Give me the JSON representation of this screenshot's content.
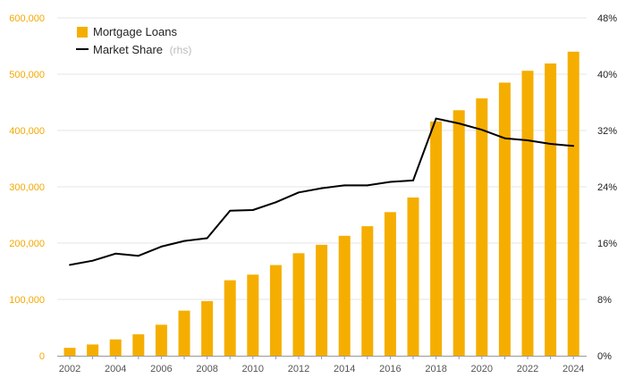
{
  "chart_data": {
    "type": "bar",
    "title": "",
    "x": [
      2002,
      2003,
      2004,
      2005,
      2006,
      2007,
      2008,
      2009,
      2010,
      2011,
      2012,
      2013,
      2014,
      2015,
      2016,
      2017,
      2018,
      2019,
      2020,
      2021,
      2022,
      2023,
      2024
    ],
    "x_tick_labels": [
      "2002",
      "2004",
      "2006",
      "2008",
      "2010",
      "2012",
      "2014",
      "2016",
      "2018",
      "2020",
      "2022",
      "2024"
    ],
    "series": [
      {
        "name": "Mortgage Loans",
        "type": "bar",
        "axis": "left",
        "color": "#f5ae00",
        "values": [
          14000,
          20000,
          29000,
          38000,
          55000,
          80000,
          97000,
          134000,
          144000,
          161000,
          182000,
          197000,
          213000,
          230000,
          255000,
          281000,
          416000,
          436000,
          457000,
          485000,
          506000,
          519000,
          540000
        ]
      },
      {
        "name": "Market Share",
        "suffix": "(rhs)",
        "type": "line",
        "axis": "right",
        "color": "#000000",
        "values": [
          12.9,
          13.5,
          14.5,
          14.2,
          15.5,
          16.3,
          16.7,
          20.6,
          20.7,
          21.8,
          23.2,
          23.8,
          24.2,
          24.2,
          24.7,
          24.9,
          33.7,
          33.0,
          32.1,
          30.9,
          30.6,
          30.1,
          29.8
        ]
      }
    ],
    "y_left": {
      "min": 0,
      "max": 600000,
      "ticks": [
        0,
        100000,
        200000,
        300000,
        400000,
        500000,
        600000
      ],
      "tick_labels": [
        "0",
        "100,000",
        "200,000",
        "300,000",
        "400,000",
        "500,000",
        "600,000"
      ]
    },
    "y_right": {
      "min": 0,
      "max": 48,
      "ticks": [
        0,
        8,
        16,
        24,
        32,
        40,
        48
      ],
      "tick_labels": [
        "0%",
        "8%",
        "16%",
        "24%",
        "32%",
        "40%",
        "48%"
      ]
    },
    "grid": true,
    "legend_position": "top-left"
  }
}
